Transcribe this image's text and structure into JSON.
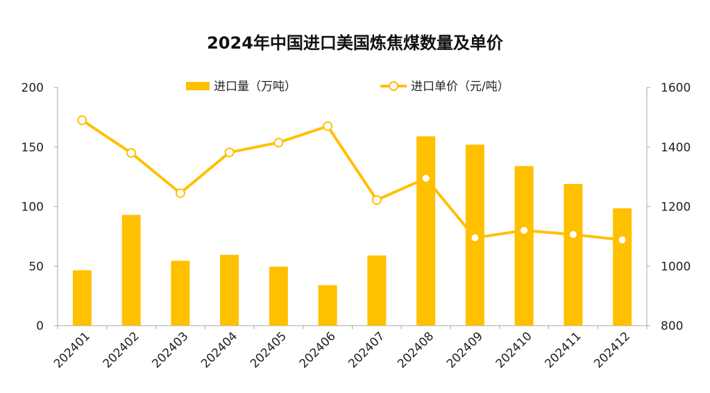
{
  "chart_data": {
    "type": "bar+line",
    "title": "2024年中国进口美国炼焦煤数量及单价",
    "categories": [
      "202401",
      "202402",
      "202403",
      "202404",
      "202405",
      "202406",
      "202407",
      "202408",
      "202409",
      "202410",
      "202411",
      "202412"
    ],
    "series": [
      {
        "name": "进口量（万吨）",
        "type": "bar",
        "axis": "left",
        "values": [
          46.5,
          93,
          54.5,
          59.5,
          49.5,
          34,
          59,
          159,
          152,
          134,
          119,
          98.5
        ]
      },
      {
        "name": "进口单价（元/吨）",
        "type": "line",
        "axis": "right",
        "values": [
          1490,
          1380,
          1245,
          1382,
          1415,
          1470,
          1222,
          1295,
          1095,
          1120,
          1106,
          1088
        ]
      }
    ],
    "y_left": {
      "ylim": [
        0,
        200
      ],
      "ticks": [
        0,
        50,
        100,
        150,
        200
      ]
    },
    "y_right": {
      "ylim": [
        800,
        1600
      ],
      "ticks": [
        800,
        1000,
        1200,
        1400,
        1600
      ]
    },
    "legend": "top-center",
    "grid": false,
    "colors": {
      "bar": "#FFC000",
      "line": "#FFC000",
      "marker_fill": "#FFFFFF",
      "axis": "#A6A6A6"
    }
  }
}
